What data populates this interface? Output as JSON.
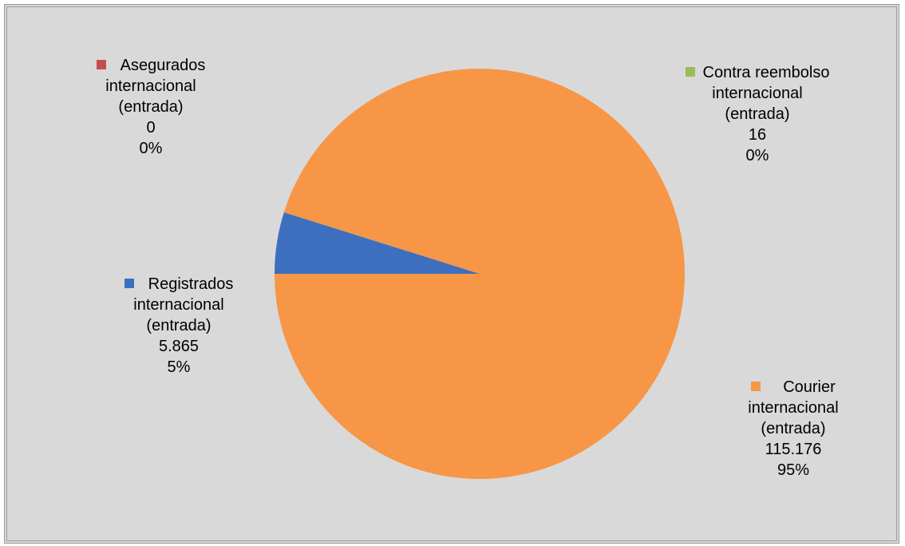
{
  "chart_data": {
    "type": "pie",
    "title": "",
    "slices": [
      {
        "label_lines": [
          "Registrados",
          "internacional",
          "(entrada)"
        ],
        "value": 5865,
        "value_text": "5.865",
        "percent_text": "5%",
        "color": "#3e6fbf"
      },
      {
        "label_lines": [
          "Asegurados",
          "internacional",
          "(entrada)"
        ],
        "value": 0,
        "value_text": "0",
        "percent_text": "0%",
        "color": "#c0504d"
      },
      {
        "label_lines": [
          "Contra reembolso",
          "internacional",
          "(entrada)"
        ],
        "value": 16,
        "value_text": "16",
        "percent_text": "0%",
        "color": "#9bbb59"
      },
      {
        "label_lines": [
          "Courier",
          "internacional",
          "(entrada)"
        ],
        "value": 115176,
        "value_text": "115.176",
        "percent_text": "95%",
        "color": "#f79646"
      }
    ],
    "background_color": "#d9d9d9"
  }
}
